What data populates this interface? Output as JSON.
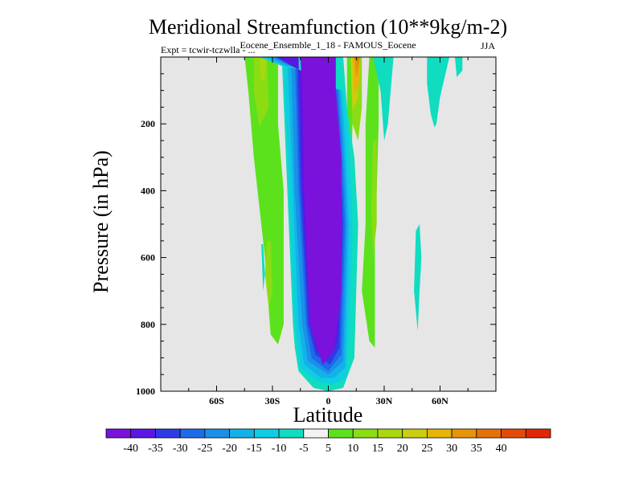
{
  "chart_data": {
    "type": "heatmap",
    "title": "Meridional Streamfunction (10**9kg/m-2)",
    "subtitle": "Eocene_Ensemble_1_18 - FAMOUS_Eocene",
    "expt_label": "Expt = tcwir-tczwlla - ...",
    "season": "JJA",
    "xlabel": "Latitude",
    "ylabel": "Pressure (in hPa)",
    "xlim": [
      -90,
      90
    ],
    "ylim": [
      1000,
      0
    ],
    "x_ticks": [
      {
        "value": -60,
        "label": "60S"
      },
      {
        "value": -30,
        "label": "30S"
      },
      {
        "value": 0,
        "label": "0"
      },
      {
        "value": 30,
        "label": "30N"
      },
      {
        "value": 60,
        "label": "60N"
      }
    ],
    "y_ticks": [
      {
        "value": 200,
        "label": "200"
      },
      {
        "value": 400,
        "label": "400"
      },
      {
        "value": 600,
        "label": "600"
      },
      {
        "value": 800,
        "label": "800"
      },
      {
        "value": 1000,
        "label": "1000"
      }
    ],
    "background_color": "#e6e6e6",
    "colorbar": {
      "levels": [
        -40,
        -35,
        -30,
        -25,
        -20,
        -15,
        -10,
        -5,
        5,
        10,
        15,
        20,
        25,
        30,
        35,
        40
      ],
      "labels": [
        "-40",
        "-35",
        "-30",
        "-25",
        "-20",
        "-15",
        "-10",
        "-5",
        "5",
        "10",
        "15",
        "20",
        "25",
        "30",
        "35",
        "40"
      ],
      "colors": [
        "#7a12dc",
        "#5b16e4",
        "#2e3ae6",
        "#1e6ae8",
        "#1a90ea",
        "#12b2e6",
        "#10cde2",
        "#10dcc0",
        "#f2f2f2",
        "#5ce21c",
        "#8cdc14",
        "#a8d810",
        "#cccc10",
        "#e4b408",
        "#e69408",
        "#e67008",
        "#e44a08",
        "#e02808"
      ]
    },
    "contours": [
      {
        "value": 5,
        "color": "#5ce21c",
        "points": [
          [
            -45,
            0
          ],
          [
            -27,
            0
          ],
          [
            -27,
            200
          ],
          [
            -24,
            400
          ],
          [
            -24,
            600
          ],
          [
            -24,
            800
          ],
          [
            -27,
            860
          ],
          [
            -31,
            830
          ],
          [
            -34,
            600
          ],
          [
            -40,
            300
          ],
          [
            -43,
            100
          ]
        ]
      },
      {
        "value": 10,
        "color": "#8cdc14",
        "points": [
          [
            -40,
            0
          ],
          [
            -33,
            0
          ],
          [
            -32,
            150
          ],
          [
            -37,
            210
          ],
          [
            -40,
            100
          ]
        ]
      },
      {
        "value": 10,
        "color": "#8cdc14",
        "points": [
          [
            -33,
            550
          ],
          [
            -31,
            550
          ],
          [
            -30,
            700
          ],
          [
            -32,
            750
          ],
          [
            -34,
            650
          ]
        ]
      },
      {
        "value": 15,
        "color": "#a8d810",
        "points": [
          [
            -37,
            0
          ],
          [
            -33,
            0
          ],
          [
            -34,
            60
          ],
          [
            -36,
            70
          ]
        ]
      },
      {
        "value": 5,
        "color": "#5ce21c",
        "points": [
          [
            22,
            0
          ],
          [
            27,
            0
          ],
          [
            27,
            200
          ],
          [
            26,
            400
          ],
          [
            25,
            500
          ],
          [
            25,
            870
          ],
          [
            22,
            850
          ],
          [
            18,
            700
          ],
          [
            20,
            500
          ],
          [
            20,
            200
          ]
        ]
      },
      {
        "value": 10,
        "color": "#8cdc14",
        "points": [
          [
            24,
            250
          ],
          [
            26,
            250
          ],
          [
            26,
            500
          ],
          [
            24,
            600
          ],
          [
            23,
            450
          ]
        ]
      },
      {
        "value": 5,
        "color": "#5ce21c",
        "points": [
          [
            10,
            0
          ],
          [
            13,
            0
          ],
          [
            13,
            200
          ],
          [
            12,
            400
          ],
          [
            11,
            630
          ],
          [
            10,
            500
          ],
          [
            10,
            250
          ]
        ]
      },
      {
        "value": 10,
        "color": "#8cdc14",
        "points": [
          [
            12,
            0
          ],
          [
            18,
            0
          ],
          [
            18,
            150
          ],
          [
            16,
            250
          ],
          [
            13,
            200
          ]
        ]
      },
      {
        "value": 20,
        "color": "#cccc10",
        "points": [
          [
            12,
            0
          ],
          [
            16,
            0
          ],
          [
            16,
            120
          ],
          [
            13,
            160
          ]
        ]
      },
      {
        "value": 25,
        "color": "#e4b408",
        "points": [
          [
            13,
            0
          ],
          [
            17,
            0
          ],
          [
            17,
            80
          ],
          [
            14,
            110
          ]
        ]
      },
      {
        "value": 30,
        "color": "#e69408",
        "points": [
          [
            14,
            0
          ],
          [
            17,
            0
          ],
          [
            16,
            40
          ],
          [
            15,
            60
          ]
        ]
      },
      {
        "value": 35,
        "color": "#e67008",
        "points": [
          [
            15,
            0
          ],
          [
            16,
            0
          ],
          [
            16,
            25
          ]
        ]
      },
      {
        "value": 5,
        "color": "#10dcc0",
        "points": [
          [
            24,
            0
          ],
          [
            35,
            0
          ],
          [
            32,
            200
          ],
          [
            30,
            250
          ],
          [
            28,
            100
          ]
        ]
      },
      {
        "value": 5,
        "color": "#10dcc0",
        "points": [
          [
            53,
            0
          ],
          [
            72,
            0
          ],
          [
            72,
            40
          ],
          [
            69,
            60
          ],
          [
            68,
            0
          ],
          [
            65,
            0
          ],
          [
            60,
            120
          ],
          [
            58,
            200
          ],
          [
            57,
            210
          ],
          [
            55,
            170
          ],
          [
            53,
            80
          ]
        ]
      },
      {
        "value": 5,
        "color": "#10dcc0",
        "points": [
          [
            47,
            520
          ],
          [
            49,
            500
          ],
          [
            50,
            600
          ],
          [
            49,
            700
          ],
          [
            48,
            820
          ],
          [
            46,
            700
          ]
        ]
      },
      {
        "value": 5,
        "color": "#10dcc0",
        "points": [
          [
            -36,
            560
          ],
          [
            -35,
            560
          ],
          [
            -34,
            650
          ],
          [
            -35,
            700
          ]
        ]
      },
      {
        "value": -5,
        "color": "#10dcc0",
        "points": [
          [
            -40,
            0
          ],
          [
            -25,
            0
          ],
          [
            -22,
            400
          ],
          [
            -19,
            800
          ],
          [
            -18,
            870
          ],
          [
            -16,
            940
          ],
          [
            -8,
            990
          ],
          [
            0,
            1000
          ],
          [
            8,
            990
          ],
          [
            14,
            900
          ],
          [
            16,
            500
          ],
          [
            14,
            300
          ],
          [
            10,
            150
          ],
          [
            8,
            0
          ]
        ]
      },
      {
        "value": -10,
        "color": "#10cde2",
        "points": [
          [
            -37,
            0
          ],
          [
            -24,
            0
          ],
          [
            -21,
            400
          ],
          [
            -18,
            800
          ],
          [
            -15,
            930
          ],
          [
            -6,
            970
          ],
          [
            2,
            980
          ],
          [
            10,
            960
          ],
          [
            13,
            500
          ],
          [
            11,
            250
          ],
          [
            8,
            100
          ]
        ]
      },
      {
        "value": -15,
        "color": "#12b2e6",
        "points": [
          [
            -34,
            0
          ],
          [
            -22,
            0
          ],
          [
            -19,
            400
          ],
          [
            -16,
            800
          ],
          [
            -13,
            920
          ],
          [
            -4,
            960
          ],
          [
            3,
            960
          ],
          [
            9,
            930
          ],
          [
            11,
            500
          ],
          [
            9,
            250
          ],
          [
            7,
            100
          ]
        ]
      },
      {
        "value": -20,
        "color": "#1a90ea",
        "points": [
          [
            -31,
            0
          ],
          [
            -20,
            0
          ],
          [
            -18,
            400
          ],
          [
            -14,
            800
          ],
          [
            -11,
            910
          ],
          [
            0,
            950
          ],
          [
            8,
            910
          ],
          [
            10,
            500
          ],
          [
            8,
            250
          ],
          [
            6,
            100
          ]
        ]
      },
      {
        "value": -25,
        "color": "#1e6ae8",
        "points": [
          [
            -29,
            0
          ],
          [
            -18,
            0
          ],
          [
            -16,
            400
          ],
          [
            -12,
            800
          ],
          [
            -9,
            900
          ],
          [
            0,
            940
          ],
          [
            7,
            890
          ],
          [
            9,
            500
          ],
          [
            7,
            250
          ],
          [
            5,
            100
          ]
        ]
      },
      {
        "value": -30,
        "color": "#2e3ae6",
        "points": [
          [
            -28,
            0
          ],
          [
            -17,
            0
          ],
          [
            -15,
            400
          ],
          [
            -11,
            800
          ],
          [
            -7,
            890
          ],
          [
            1,
            920
          ],
          [
            6,
            870
          ],
          [
            8,
            500
          ],
          [
            6,
            250
          ],
          [
            4,
            100
          ]
        ]
      },
      {
        "value": -35,
        "color": "#5b16e4",
        "points": [
          [
            -27,
            0
          ],
          [
            -16,
            0
          ],
          [
            -14,
            400
          ],
          [
            -10,
            800
          ],
          [
            -6,
            880
          ],
          [
            0,
            900
          ],
          [
            5,
            850
          ],
          [
            7,
            500
          ],
          [
            5,
            250
          ],
          [
            3,
            100
          ]
        ]
      },
      {
        "value": -40,
        "color": "#7a12dc",
        "points": [
          [
            -24,
            0
          ],
          [
            -15,
            0
          ],
          [
            -14,
            100
          ],
          [
            -13,
            400
          ],
          [
            -10,
            800
          ],
          [
            -3,
            920
          ],
          [
            3,
            880
          ],
          [
            7,
            700
          ],
          [
            7,
            300
          ],
          [
            4,
            100
          ],
          [
            4,
            0
          ]
        ]
      }
    ]
  }
}
